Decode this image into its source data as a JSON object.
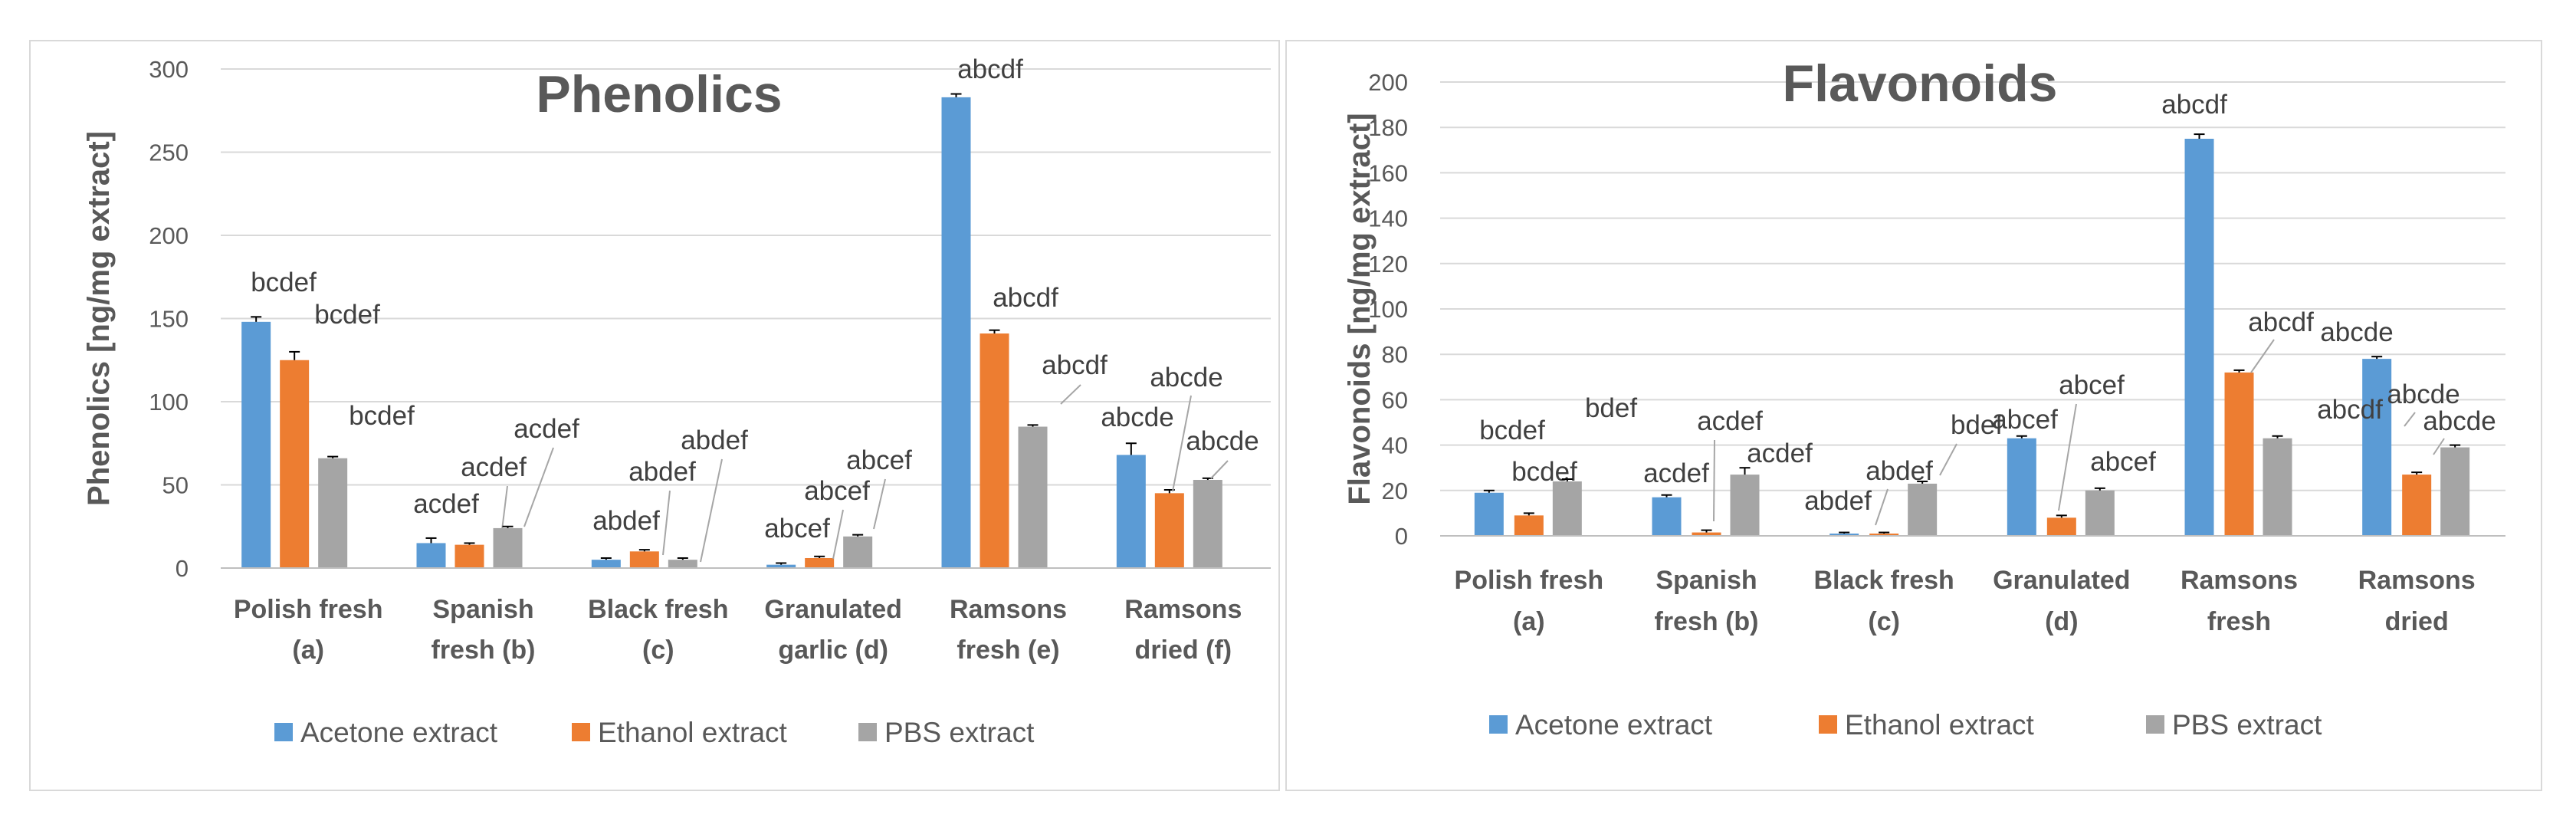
{
  "colors": {
    "acetone": "#5B9BD5",
    "ethanol": "#ED7D31",
    "pbs": "#A5A5A5",
    "grid": "#D9D9D9",
    "text": "#595959"
  },
  "chart_data": [
    {
      "type": "bar",
      "title": "Phenolics",
      "ylabel": "Phenolics [ng/mg extract]",
      "ylim": [
        0,
        300
      ],
      "yticks": [
        0,
        50,
        100,
        150,
        200,
        250,
        300
      ],
      "grid": true,
      "legend": "bottom",
      "categories": [
        [
          "Polish fresh",
          "(a)"
        ],
        [
          "Spanish",
          "fresh (b)"
        ],
        [
          "Black fresh",
          "(c)"
        ],
        [
          "Granulated",
          "garlic (d)"
        ],
        [
          "Ramsons",
          "fresh (e)"
        ],
        [
          "Ramsons",
          "dried (f)"
        ]
      ],
      "series": [
        {
          "name": "Acetone extract",
          "values": [
            148,
            15,
            5,
            2,
            283,
            68
          ],
          "errors": [
            3,
            3,
            1,
            1,
            2,
            7
          ],
          "labels": [
            "bcdef",
            "acdef",
            "abdef",
            "abcef",
            "abcdf",
            "abcde"
          ]
        },
        {
          "name": "Ethanol extract",
          "values": [
            125,
            14,
            10,
            6,
            141,
            45
          ],
          "errors": [
            5,
            1,
            1,
            1,
            2,
            2
          ],
          "labels": [
            "bcdef",
            "acdef",
            "abdef",
            "abcef",
            "abcdf",
            "abcde"
          ]
        },
        {
          "name": "PBS extract",
          "values": [
            66,
            24,
            5,
            19,
            85,
            53
          ],
          "errors": [
            1,
            1,
            1,
            1,
            1,
            1
          ],
          "labels": [
            "bcdef",
            "acdef",
            "abdef",
            "abcef",
            "abcdf",
            "abcde"
          ]
        }
      ]
    },
    {
      "type": "bar",
      "title": "Flavonoids",
      "ylabel": "Flavonoids  [ng/mg extract]",
      "ylim": [
        0,
        200
      ],
      "yticks": [
        0,
        20,
        40,
        60,
        80,
        100,
        120,
        140,
        160,
        180,
        200
      ],
      "grid": true,
      "legend": "bottom",
      "categories": [
        [
          "Polish fresh",
          "(a)"
        ],
        [
          "Spanish",
          "fresh (b)"
        ],
        [
          "Black fresh",
          "(c)"
        ],
        [
          "Granulated",
          "(d)"
        ],
        [
          "Ramsons",
          "fresh"
        ],
        [
          "Ramsons",
          "dried"
        ]
      ],
      "series": [
        {
          "name": "Acetone extract",
          "values": [
            19,
            17,
            1,
            43,
            175,
            78
          ],
          "errors": [
            1,
            1,
            0.5,
            1,
            2,
            1
          ],
          "labels": [
            "bcdef",
            "acdef",
            "abdef",
            "abcef",
            "abcdf",
            "abcde"
          ]
        },
        {
          "name": "Ethanol extract",
          "values": [
            9,
            1.5,
            1,
            8,
            72,
            27
          ],
          "errors": [
            1,
            1,
            0.5,
            1,
            1,
            1
          ],
          "labels": [
            "bcdef",
            "acdef",
            "abdef",
            "abcef",
            "abcdf",
            "abcde"
          ]
        },
        {
          "name": "PBS extract",
          "values": [
            24,
            27,
            23,
            20,
            43,
            39
          ],
          "errors": [
            1,
            3,
            1,
            1,
            1,
            1
          ],
          "labels": [
            "bdef",
            "acdef",
            "bdef",
            "abcef",
            "abcdf",
            "abcde"
          ]
        }
      ]
    }
  ]
}
